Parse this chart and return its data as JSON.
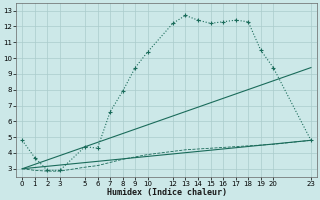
{
  "xlabel": "Humidex (Indice chaleur)",
  "background_color": "#cce8e8",
  "grid_color": "#aacccc",
  "line_color": "#1a6b5a",
  "xlim": [
    -0.5,
    23.5
  ],
  "ylim": [
    2.5,
    13.5
  ],
  "xticks": [
    0,
    1,
    2,
    3,
    5,
    6,
    7,
    8,
    9,
    10,
    12,
    13,
    14,
    15,
    16,
    17,
    18,
    19,
    20,
    23
  ],
  "yticks": [
    3,
    4,
    5,
    6,
    7,
    8,
    9,
    10,
    11,
    12,
    13
  ],
  "line1_x": [
    0,
    1,
    2,
    3,
    5,
    6,
    7,
    8,
    9,
    10,
    12,
    13,
    14,
    15,
    16,
    17,
    18,
    19,
    20,
    23
  ],
  "line1_y": [
    4.8,
    3.7,
    2.9,
    2.9,
    4.4,
    4.3,
    6.6,
    7.9,
    9.4,
    10.4,
    12.2,
    12.7,
    12.4,
    12.2,
    12.3,
    12.4,
    12.3,
    10.5,
    9.4,
    4.8
  ],
  "line2_x": [
    0,
    23
  ],
  "line2_y": [
    3.0,
    9.4
  ],
  "line3_x": [
    0,
    23
  ],
  "line3_y": [
    3.0,
    4.8
  ],
  "line4_x": [
    0,
    1,
    2,
    3,
    5,
    6,
    7,
    8,
    9,
    10,
    12,
    13,
    14,
    15,
    16,
    17,
    18,
    19,
    20,
    23
  ],
  "line4_y": [
    3.0,
    2.9,
    2.85,
    2.85,
    3.1,
    3.2,
    3.4,
    3.6,
    3.75,
    3.9,
    4.1,
    4.2,
    4.25,
    4.3,
    4.35,
    4.4,
    4.45,
    4.5,
    4.55,
    4.8
  ],
  "xlabel_fontsize": 6.0,
  "tick_fontsize": 5.0,
  "figsize": [
    3.2,
    2.0
  ],
  "dpi": 100
}
